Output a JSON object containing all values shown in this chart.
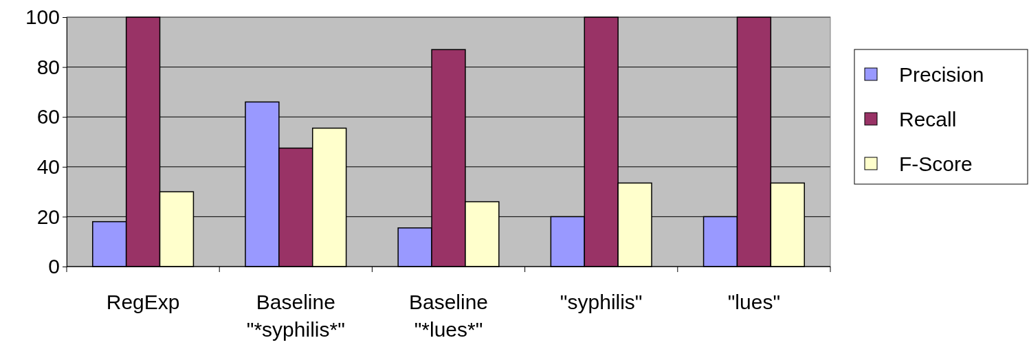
{
  "chart_data": {
    "type": "bar",
    "categories": [
      "RegExp",
      "Baseline\n\"*syphilis*\"",
      "Baseline\n\"*lues*\"",
      "\"syphilis\"",
      "\"lues\""
    ],
    "series": [
      {
        "name": "Precision",
        "color": "#9999ff",
        "values": [
          18,
          66,
          15.5,
          20,
          20
        ]
      },
      {
        "name": "Recall",
        "color": "#993366",
        "values": [
          100,
          47.5,
          87,
          100,
          100
        ]
      },
      {
        "name": "F-Score",
        "color": "#ffffcc",
        "values": [
          30,
          55.5,
          26,
          33.5,
          33.5
        ]
      }
    ],
    "ylim": [
      0,
      100
    ],
    "yticks": [
      0,
      20,
      40,
      60,
      80,
      100
    ],
    "grid": "y",
    "legend": "right"
  }
}
